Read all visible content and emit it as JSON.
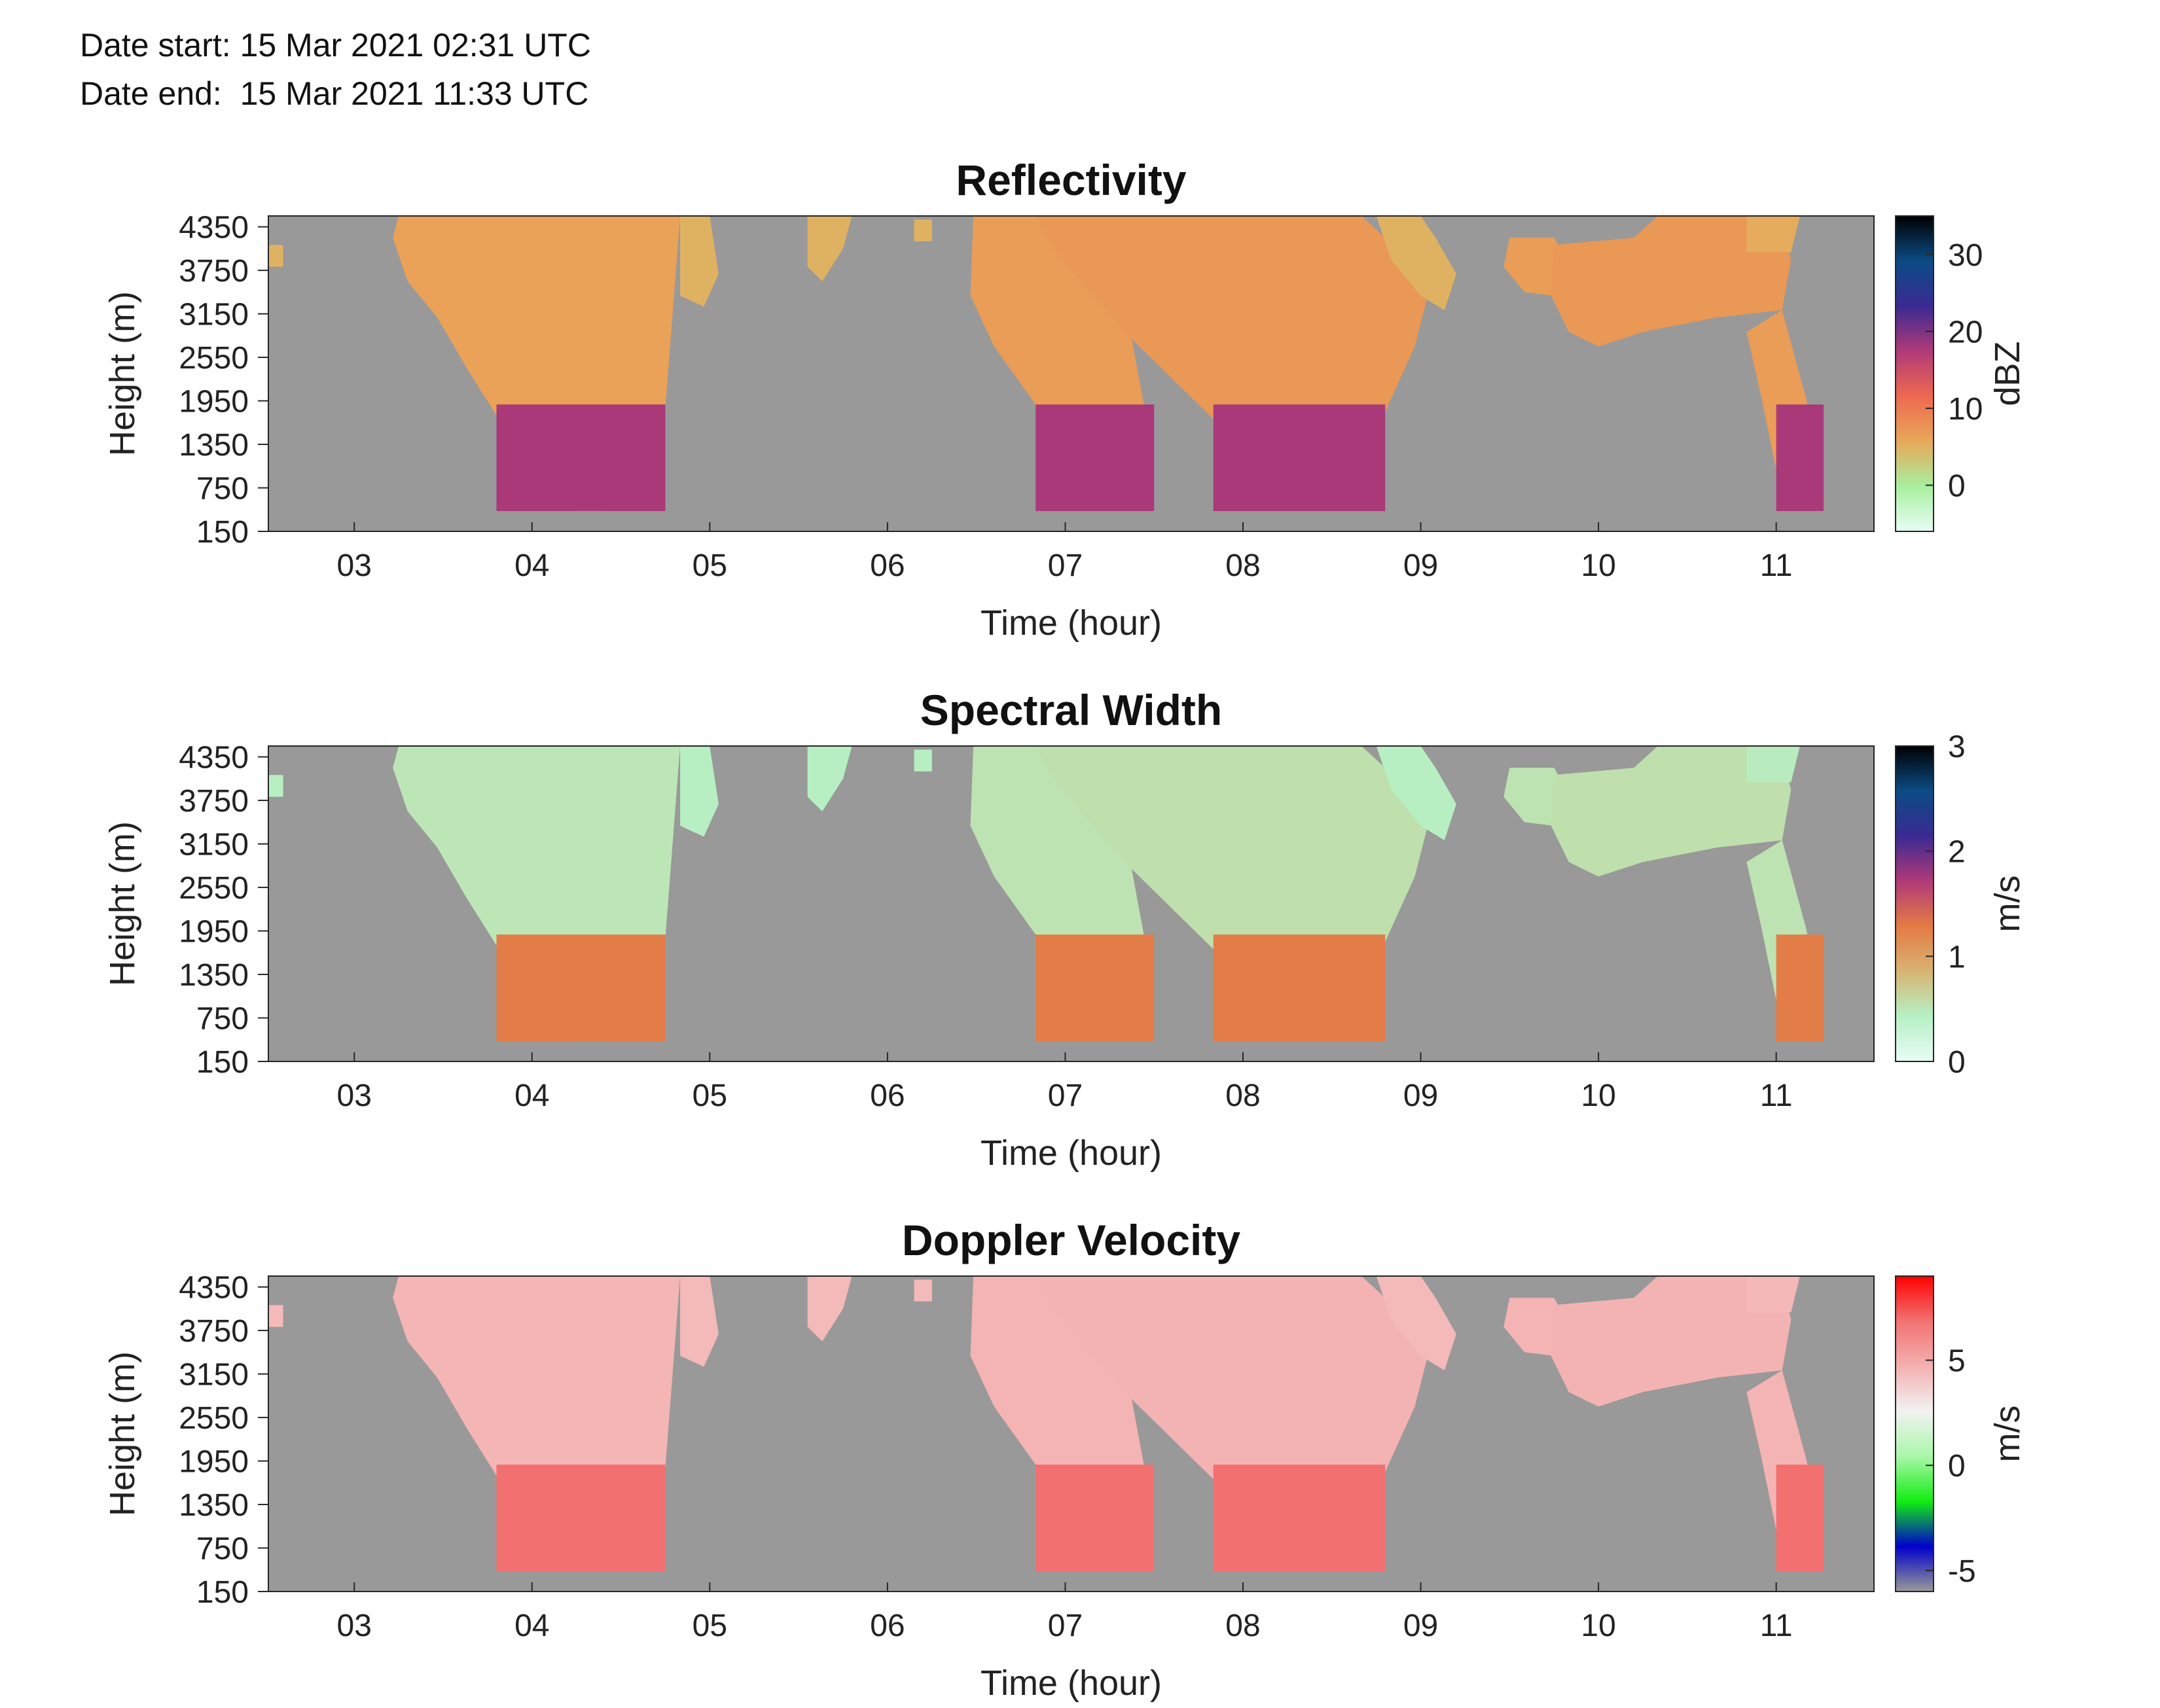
{
  "header": {
    "date_start_label": "Date start:",
    "date_start_value": "15 Mar 2021 02:31 UTC",
    "date_end_label": "Date end:",
    "date_end_value": "15 Mar 2021 11:33 UTC"
  },
  "colors": {
    "background_fill": "#999999",
    "axis": "#262626"
  },
  "chart_data": [
    {
      "type": "heatmap",
      "title": "Reflectivity",
      "xlabel": "Time (hour)",
      "ylabel": "Height (m)",
      "x_ticks": [
        "03",
        "04",
        "05",
        "06",
        "07",
        "08",
        "09",
        "10",
        "11"
      ],
      "y_ticks": [
        "150",
        "750",
        "1350",
        "1950",
        "2550",
        "3150",
        "3750",
        "4350"
      ],
      "xlim": [
        "02:31",
        "11:33"
      ],
      "ylim": [
        150,
        4500
      ],
      "colorbar": {
        "label": "dBZ",
        "ticks": [
          "0",
          "10",
          "20",
          "30"
        ],
        "tick_values": [
          0,
          10,
          20,
          30
        ],
        "range": [
          -6,
          35
        ],
        "colors": [
          "#e8fdf5",
          "#a8ef9e",
          "#e8a858",
          "#ee6850",
          "#b13a78",
          "#3a2a92",
          "#0a4c84",
          "#000000"
        ]
      },
      "units": "dBZ",
      "scale_max": 35
    },
    {
      "type": "heatmap",
      "title": "Spectral Width",
      "xlabel": "Time (hour)",
      "ylabel": "Height (m)",
      "x_ticks": [
        "03",
        "04",
        "05",
        "06",
        "07",
        "08",
        "09",
        "10",
        "11"
      ],
      "y_ticks": [
        "150",
        "750",
        "1350",
        "1950",
        "2550",
        "3150",
        "3750",
        "4350"
      ],
      "xlim": [
        "02:31",
        "11:33"
      ],
      "ylim": [
        150,
        4500
      ],
      "colorbar": {
        "label": "m/s",
        "ticks": [
          "0",
          "1",
          "2",
          "3"
        ],
        "tick_values": [
          0,
          1,
          2,
          3
        ],
        "range": [
          0,
          3
        ],
        "colors": [
          "#e8fdf5",
          "#b6f0c4",
          "#d8b472",
          "#e47a44",
          "#b13a78",
          "#3a2a92",
          "#0a4c84",
          "#000000"
        ]
      },
      "units": "m/s",
      "scale_max": 3
    },
    {
      "type": "heatmap",
      "title": "Doppler Velocity",
      "xlabel": "Time (hour)",
      "ylabel": "Height (m)",
      "x_ticks": [
        "03",
        "04",
        "05",
        "06",
        "07",
        "08",
        "09",
        "10",
        "11"
      ],
      "y_ticks": [
        "150",
        "750",
        "1350",
        "1950",
        "2550",
        "3150",
        "3750",
        "4350"
      ],
      "xlim": [
        "02:31",
        "11:33"
      ],
      "ylim": [
        150,
        4500
      ],
      "colorbar": {
        "label": "m/s",
        "ticks": [
          "-5",
          "0",
          "5"
        ],
        "tick_values": [
          -5,
          0,
          5
        ],
        "range": [
          -6,
          9
        ],
        "colors": [
          "#999999",
          "#0000cc",
          "#11ee11",
          "#aaf7aa",
          "#f2f2f2",
          "#f4b0b0",
          "#f27272",
          "#ff0000"
        ]
      },
      "units": "m/s",
      "scale_max": 9
    }
  ]
}
